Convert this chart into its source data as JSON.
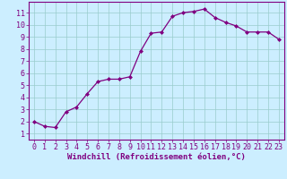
{
  "x": [
    0,
    1,
    2,
    3,
    4,
    5,
    6,
    7,
    8,
    9,
    10,
    11,
    12,
    13,
    14,
    15,
    16,
    17,
    18,
    19,
    20,
    21,
    22,
    23
  ],
  "y": [
    2.0,
    1.6,
    1.5,
    2.8,
    3.2,
    4.3,
    5.3,
    5.5,
    5.5,
    5.7,
    7.8,
    9.3,
    9.4,
    10.7,
    11.0,
    11.1,
    11.3,
    10.6,
    10.2,
    9.9,
    9.4,
    9.4,
    9.4,
    8.8
  ],
  "line_color": "#800080",
  "marker": "D",
  "marker_size": 2.0,
  "bg_color": "#cceeff",
  "grid_color": "#99cccc",
  "xlabel": "Windchill (Refroidissement éolien,°C)",
  "ylabel_ticks": [
    1,
    2,
    3,
    4,
    5,
    6,
    7,
    8,
    9,
    10,
    11
  ],
  "xlim": [
    -0.5,
    23.5
  ],
  "ylim": [
    0.5,
    11.9
  ],
  "xlabel_fontsize": 6.5,
  "tick_fontsize": 6.0,
  "tick_color": "#800080",
  "spine_color": "#800080"
}
